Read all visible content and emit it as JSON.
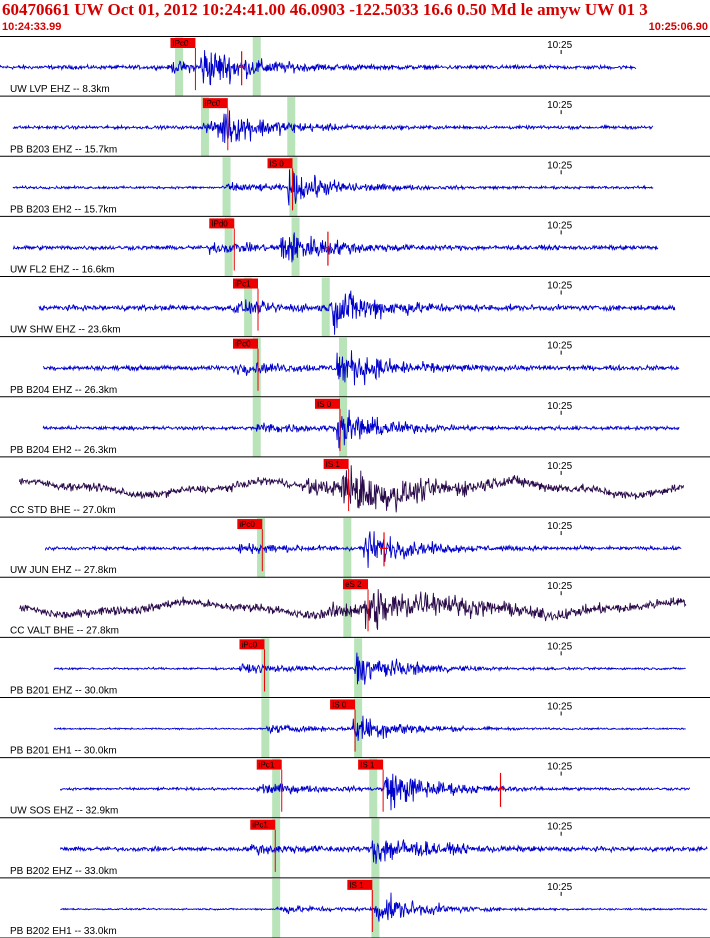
{
  "header": {
    "title": "60470661 UW Oct 01, 2012 10:24:41.00   46.0903 -122.5033 16.6 0.50 Md le amyw UW 01   3",
    "start_time": "10:24:33.99",
    "end_time": "10:25:06.90"
  },
  "colors": {
    "header_text": "#d40000",
    "trace_short": "#0000cc",
    "trace_broadband": "#2a0a4a",
    "pick_box": "#ee0000",
    "phase_band": "#b9e4b9",
    "grid": "#000000"
  },
  "chart_data": {
    "type": "line",
    "title": "60470661 UW Oct 01, 2012 10:24:41.00   46.0903 -122.5033 16.6 0.50 Md le amyw UW 01   3",
    "x_range": [
      "10:24:33.99",
      "10:25:06.90"
    ],
    "time_tick_label": "10:25",
    "time_tick_seconds": 26.01,
    "grid": "vertical lines between panels",
    "series": [
      {
        "name": "UW LVP EHZ -- 8.3km",
        "kind": "short",
        "amp": 1.1,
        "noise": 0.1,
        "start": 0.0,
        "end": 29.5,
        "pick_p": {
          "label": "IPc0",
          "t": 7.9
        },
        "pick_s": null,
        "band_p": 8.3,
        "band_s": 11.9,
        "s_marker": 11.2,
        "arrival": 9.5
      },
      {
        "name": "PB B203 EHZ -- 15.7km",
        "kind": "short",
        "amp": 1.0,
        "noise": 0.09,
        "start": 0.6,
        "end": 30.3,
        "pick_p": {
          "label": "iPc0",
          "t": 9.4
        },
        "pick_s": null,
        "band_p": 9.5,
        "band_s": 13.5,
        "s_marker": null,
        "arrival": 10.2
      },
      {
        "name": "PB B203 EH2 -- 15.7km",
        "kind": "short",
        "amp": 0.9,
        "noise": 0.08,
        "start": 0.6,
        "end": 30.3,
        "pick_p": null,
        "pick_s": {
          "label": "IS 0",
          "t": 12.4
        },
        "band_p": 10.5,
        "band_s": 13.6,
        "s_marker": null,
        "arrival": 13.5
      },
      {
        "name": "UW FL2 EHZ -- 16.6km",
        "kind": "short",
        "amp": 1.0,
        "noise": 0.12,
        "start": 0.6,
        "end": 30.5,
        "pick_p": {
          "label": "IPd0",
          "t": 9.7
        },
        "pick_s": null,
        "band_p": 10.6,
        "band_s": 13.7,
        "s_marker": 15.2,
        "arrival": 13.2
      },
      {
        "name": "UW SHW EHZ -- 23.6km",
        "kind": "short",
        "amp": 1.2,
        "noise": 0.12,
        "start": 1.8,
        "end": 31.3,
        "pick_p": {
          "label": "iPc1",
          "t": 10.8
        },
        "pick_s": null,
        "band_p": 11.5,
        "band_s": 15.1,
        "s_marker": null,
        "arrival": 15.5
      },
      {
        "name": "PB B204 EHZ -- 26.3km",
        "kind": "short",
        "amp": 1.1,
        "noise": 0.12,
        "start": 2.0,
        "end": 31.5,
        "pick_p": {
          "label": "iPc0",
          "t": 10.8
        },
        "pick_s": null,
        "band_p": 11.9,
        "band_s": 15.9,
        "s_marker": null,
        "arrival": 15.8
      },
      {
        "name": "PB B204 EH2 -- 26.3km",
        "kind": "short",
        "amp": 1.0,
        "noise": 0.1,
        "start": 2.0,
        "end": 31.5,
        "pick_p": null,
        "pick_s": {
          "label": "IS 0",
          "t": 14.6
        },
        "band_p": 11.9,
        "band_s": 15.9,
        "s_marker": null,
        "arrival": 15.8
      },
      {
        "name": "CC STD BHE -- 27.0km",
        "kind": "broadband",
        "amp": 1.2,
        "noise": 0.18,
        "start": 0.9,
        "end": 31.7,
        "pick_p": null,
        "pick_s": {
          "label": "IS 1",
          "t": 15.0
        },
        "band_p": null,
        "band_s": null,
        "s_marker": null,
        "arrival": 16.0
      },
      {
        "name": "UW JUN EHZ -- 27.8km",
        "kind": "short",
        "amp": 1.0,
        "noise": 0.1,
        "start": 2.1,
        "end": 31.6,
        "pick_p": {
          "label": "iPc0",
          "t": 11.0
        },
        "pick_s": null,
        "band_p": 12.1,
        "band_s": 16.1,
        "s_marker": 17.8,
        "arrival": 17.0
      },
      {
        "name": "CC VALT BHE -- 27.8km",
        "kind": "broadband",
        "amp": 1.1,
        "noise": 0.22,
        "start": 0.9,
        "end": 31.8,
        "pick_p": null,
        "pick_s": {
          "label": "eS 2",
          "t": 15.9
        },
        "band_p": null,
        "band_s": 16.1,
        "s_marker": null,
        "arrival": 17.1
      },
      {
        "name": "PB B201 EHZ -- 30.0km",
        "kind": "short",
        "amp": 1.0,
        "noise": 0.06,
        "start": 2.5,
        "end": 31.8,
        "pick_p": {
          "label": "iPc0",
          "t": 11.1
        },
        "pick_s": null,
        "band_p": 12.3,
        "band_s": 16.6,
        "s_marker": null,
        "arrival": 16.6
      },
      {
        "name": "PB B201 EH1 -- 30.0km",
        "kind": "short",
        "amp": 0.9,
        "noise": 0.05,
        "start": 2.5,
        "end": 31.8,
        "pick_p": null,
        "pick_s": {
          "label": "IS 0",
          "t": 15.3
        },
        "band_p": 12.3,
        "band_s": 16.6,
        "s_marker": null,
        "arrival": 16.5
      },
      {
        "name": "UW SOS EHZ -- 32.9km",
        "kind": "short",
        "amp": 1.2,
        "noise": 0.06,
        "start": 2.8,
        "end": 32.0,
        "pick_p": {
          "label": "iPc1",
          "t": 11.9
        },
        "pick_s": {
          "label": "IS 1",
          "t": 16.6
        },
        "band_p": 12.8,
        "band_s": 17.3,
        "s_marker": 23.2,
        "arrival": 18.0
      },
      {
        "name": "PB B202 EHZ -- 33.0km",
        "kind": "short",
        "amp": 1.0,
        "noise": 0.12,
        "start": 2.8,
        "end": 32.8,
        "pick_p": {
          "label": "iPc1",
          "t": 11.6
        },
        "pick_s": null,
        "band_p": 12.8,
        "band_s": 17.4,
        "s_marker": null,
        "arrival": 17.4
      },
      {
        "name": "PB B202 EH1 -- 33.0km",
        "kind": "short",
        "amp": 0.9,
        "noise": 0.05,
        "start": 2.8,
        "end": 32.8,
        "pick_p": null,
        "pick_s": {
          "label": "IS 1",
          "t": 16.1
        },
        "band_p": 12.8,
        "band_s": 17.4,
        "s_marker": null,
        "arrival": 17.5
      }
    ]
  }
}
